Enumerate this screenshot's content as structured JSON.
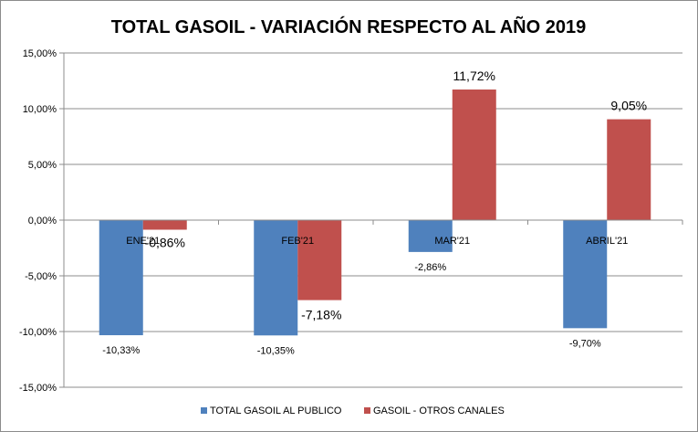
{
  "chart_data": {
    "type": "bar",
    "title": "TOTAL GASOIL - VARIACIÓN RESPECTO AL AÑO 2019",
    "categories": [
      "ENE'21",
      "FEB'21",
      "MAR'21",
      "ABRIL'21"
    ],
    "series": [
      {
        "name": "TOTAL GASOIL AL PUBLICO",
        "color": "#4f81bd",
        "values": [
          -10.33,
          -10.35,
          -2.86,
          -9.7
        ],
        "labels": [
          "-10,33%",
          "-10,35%",
          "-2,86%",
          "-9,70%"
        ]
      },
      {
        "name": "GASOIL - OTROS CANALES",
        "color": "#c0504d",
        "values": [
          -0.86,
          -7.18,
          11.72,
          9.05
        ],
        "labels": [
          "-0,86%",
          "-7,18%",
          "11,72%",
          "9,05%"
        ]
      }
    ],
    "ylim": [
      -15,
      15
    ],
    "yticks": [
      15,
      10,
      5,
      0,
      -5,
      -10,
      -15
    ],
    "ytick_labels": [
      "15,00%",
      "10,00%",
      "5,00%",
      "0,00%",
      "-5,00%",
      "-10,00%",
      "-15,00%"
    ],
    "grid": true,
    "legend_position": "bottom",
    "xlabel": "",
    "ylabel": ""
  }
}
